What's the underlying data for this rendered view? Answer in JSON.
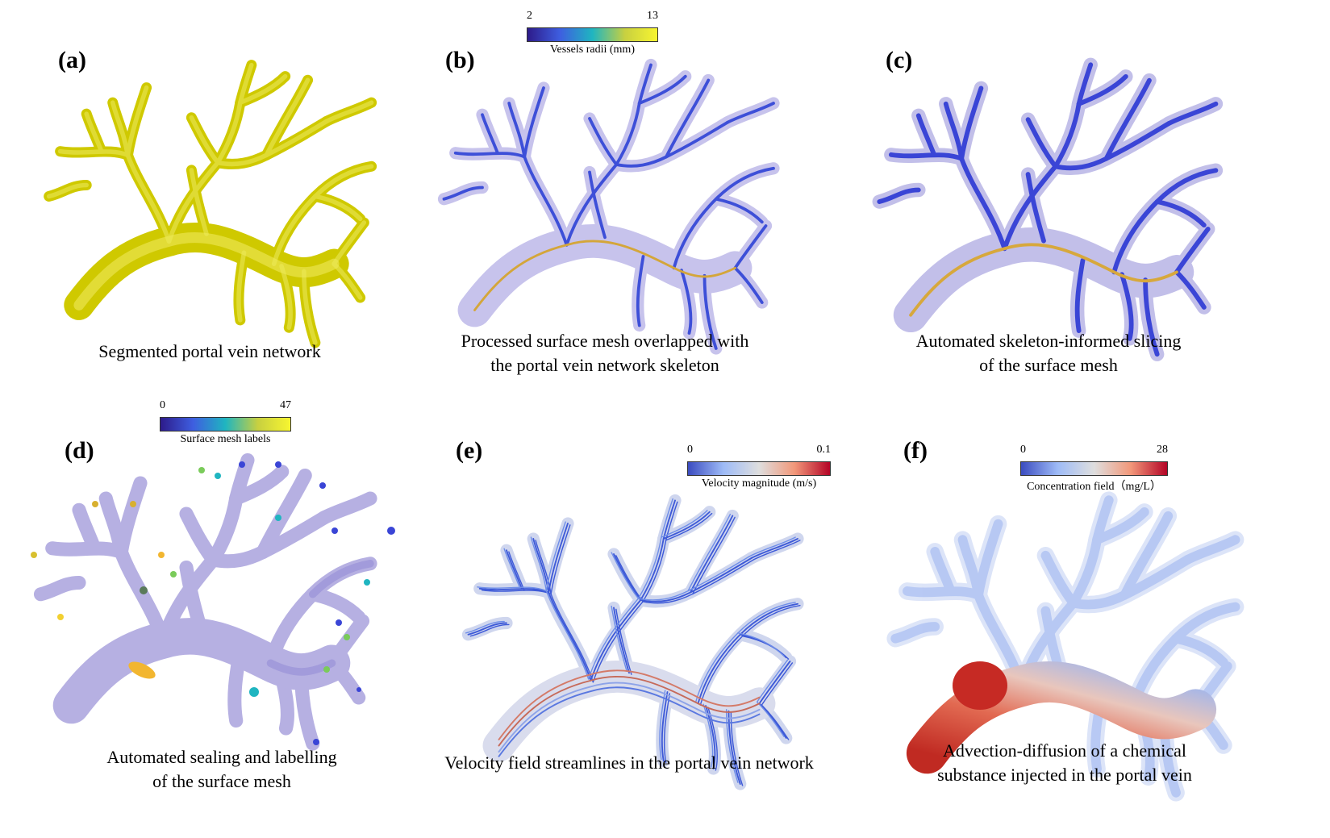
{
  "panels": [
    {
      "id": "a",
      "label": "(a)",
      "caption": [
        "Segmented portal vein network"
      ]
    },
    {
      "id": "b",
      "label": "(b)",
      "caption": [
        "Processed surface mesh overlapped with",
        "the portal vein network skeleton"
      ],
      "colorbar": {
        "min": "2",
        "max": "13",
        "title": "Vessels radii (mm)"
      }
    },
    {
      "id": "c",
      "label": "(c)",
      "caption": [
        "Automated skeleton-informed slicing",
        "of the surface mesh"
      ]
    },
    {
      "id": "d",
      "label": "(d)",
      "caption": [
        "Automated sealing and labelling",
        "of the surface mesh"
      ],
      "colorbar": {
        "min": "0",
        "max": "47",
        "title": "Surface mesh labels"
      }
    },
    {
      "id": "e",
      "label": "(e)",
      "caption": [
        "Velocity field streamlines in the portal vein network"
      ],
      "colorbar": {
        "min": "0",
        "max": "0.1",
        "title": "Velocity magnitude (m/s)"
      }
    },
    {
      "id": "f",
      "label": "(f)",
      "caption": [
        "Advection-diffusion of a chemical",
        "substance injected in the portal vein"
      ],
      "colorbar": {
        "min": "0",
        "max": "28",
        "title": "Concentration field（mg/L）"
      }
    }
  ],
  "colors": {
    "yellow_vessel": "#d8d400",
    "mesh_purple": "#b5b0e0",
    "skeleton_blue": "#3c46d8",
    "viridis": [
      "#440154",
      "#3b528b",
      "#21918c",
      "#5ec962",
      "#fde725"
    ],
    "coolwarm": [
      "#3b4cc0",
      "#aac7fd",
      "#dddddd",
      "#f49a7b",
      "#b40426"
    ]
  }
}
